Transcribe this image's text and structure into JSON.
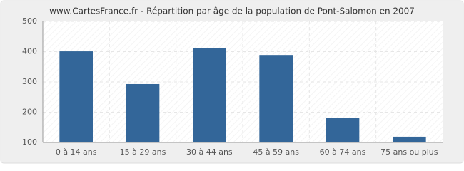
{
  "chart_data": {
    "type": "bar",
    "title": "www.CartesFrance.fr - Répartition par âge de la population de Pont-Salomon en 2007",
    "categories": [
      "0 à 14 ans",
      "15 à 29 ans",
      "30 à 44 ans",
      "45 à 59 ans",
      "60 à 74 ans",
      "75 ans ou plus"
    ],
    "values": [
      401,
      293,
      411,
      389,
      182,
      119
    ],
    "color": "#336699",
    "ylim": [
      100,
      500
    ],
    "yticks": [
      100,
      200,
      300,
      400,
      500
    ],
    "grid": true
  }
}
